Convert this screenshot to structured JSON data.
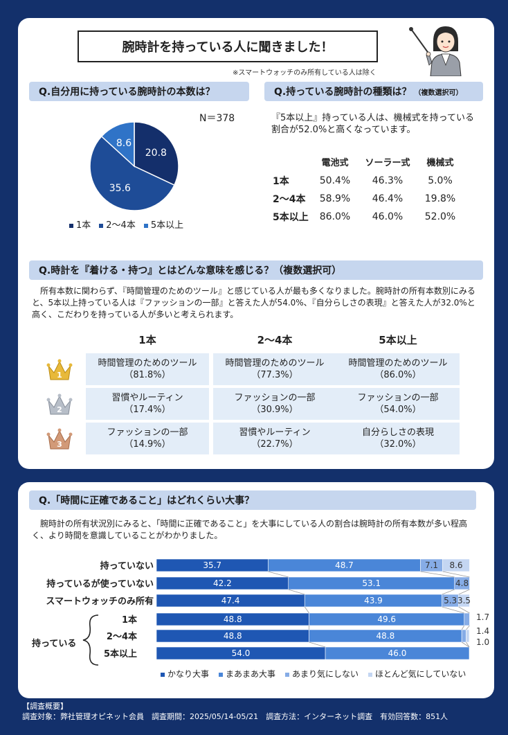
{
  "header": {
    "title": "腕時計を持っている人に聞きました！",
    "note": "※スマートウォッチのみ所有している人は除く"
  },
  "q1": {
    "title": "Q.自分用に持っている腕時計の本数は？",
    "n_label": "N＝378"
  },
  "q2": {
    "title": "Q.持っている腕時計の種類は？",
    "title_note": "（複数選択可）",
    "description": "『5本以上』持っている人は、機械式を持っている割合が52.0%と高くなっています。",
    "columns": [
      "電池式",
      "ソーラー式",
      "機械式"
    ],
    "rows": [
      {
        "label": "1本",
        "values": [
          "50.4%",
          "46.3%",
          "5.0%"
        ]
      },
      {
        "label": "2～4本",
        "values": [
          "58.9%",
          "46.4%",
          "19.8%"
        ]
      },
      {
        "label": "5本以上",
        "values": [
          "86.0%",
          "46.0%",
          "52.0%"
        ]
      }
    ]
  },
  "q3": {
    "title": "Q.時計を『着ける・持つ』とはどんな意味を感じる？（複数選択可）",
    "description": "所有本数に関わらず、『時間管理のためのツール』と感じている人が最も多くなりました。腕時計の所有本数別にみると、5本以上持っている人は『ファッションの一部』と答えた人が54.0%、『自分らしさの表現』と答えた人が32.0%と高く、こだわりを持っている人が多いと考えられます。",
    "columns": [
      "1本",
      "2～4本",
      "5本以上"
    ],
    "ranks": [
      "1",
      "2",
      "3"
    ],
    "cells": [
      [
        {
          "name": "時間管理のためのツール",
          "pct": "（81.8%）"
        },
        {
          "name": "時間管理のためのツール",
          "pct": "（77.3%）"
        },
        {
          "name": "時間管理のためのツール",
          "pct": "（86.0%）"
        }
      ],
      [
        {
          "name": "習慣やルーティン",
          "pct": "（17.4%）"
        },
        {
          "name": "ファッションの一部",
          "pct": "（30.9%）"
        },
        {
          "name": "ファッションの一部",
          "pct": "（54.0%）"
        }
      ],
      [
        {
          "name": "ファッションの一部",
          "pct": "（14.9%）"
        },
        {
          "name": "習慣やルーティン",
          "pct": "（22.7%）"
        },
        {
          "name": "自分らしさの表現",
          "pct": "（32.0%）"
        }
      ]
    ]
  },
  "q4": {
    "title": "Q.「時間に正確であること」はどれくらい大事？",
    "description": "腕時計の所有状況別にみると、「時間に正確であること」を大事にしている人の割合は腕時計の所有本数が多い程高く、より時間を意識していることがわかりました。",
    "group_label": "持っている"
  },
  "footer": {
    "heading": "【調査概要】",
    "text": "調査対象：弊社管理オピネット会員　調査期間：2025/05/14-05/21　調査方法：インターネット調査　有効回答数：851人"
  },
  "colors": {
    "navy": "#13306b",
    "pie_1": "#142f6b",
    "pie_2": "#1e4c97",
    "pie_3": "#2f73c7",
    "bar_1": "#1f57b3",
    "bar_2": "#4a86d8",
    "bar_3": "#86ace6",
    "bar_4": "#c4d6f2"
  },
  "chart_data": [
    {
      "type": "pie",
      "categories": [
        "1本",
        "2～4本",
        "5本以上"
      ],
      "values": [
        20.8,
        35.6,
        8.6
      ],
      "legend": "bottom"
    },
    {
      "type": "bar",
      "orientation": "horizontal",
      "stacked": true,
      "categories": [
        "持っていない",
        "持っているが使っていない",
        "スマートウォッチのみ所有",
        "1本",
        "2～4本",
        "5本以上"
      ],
      "series": [
        {
          "name": "かなり大事",
          "values": [
            35.7,
            42.2,
            47.4,
            48.8,
            48.8,
            54.0
          ]
        },
        {
          "name": "まあまあ大事",
          "values": [
            48.7,
            53.1,
            43.9,
            49.6,
            48.8,
            46.0
          ]
        },
        {
          "name": "あまり気にしない",
          "values": [
            7.1,
            4.8,
            5.3,
            1.7,
            1.4,
            0.0
          ]
        },
        {
          "name": "ほとんど気にしていない",
          "values": [
            8.6,
            0.0,
            3.5,
            0.0,
            1.0,
            0.0
          ]
        }
      ],
      "data_labels": [
        [
          "35.7",
          "48.7",
          "7.1",
          "8.6"
        ],
        [
          "42.2",
          "53.1",
          "4.8",
          ""
        ],
        [
          "47.4",
          "43.9",
          "5.3",
          "3.5"
        ],
        [
          "48.8",
          "49.6",
          "1.7",
          ""
        ],
        [
          "48.8",
          "48.8",
          "1.4",
          "1.0"
        ],
        [
          "54.0",
          "46.0",
          "",
          ""
        ]
      ],
      "xlim": [
        0,
        100
      ],
      "legend": "bottom"
    }
  ]
}
